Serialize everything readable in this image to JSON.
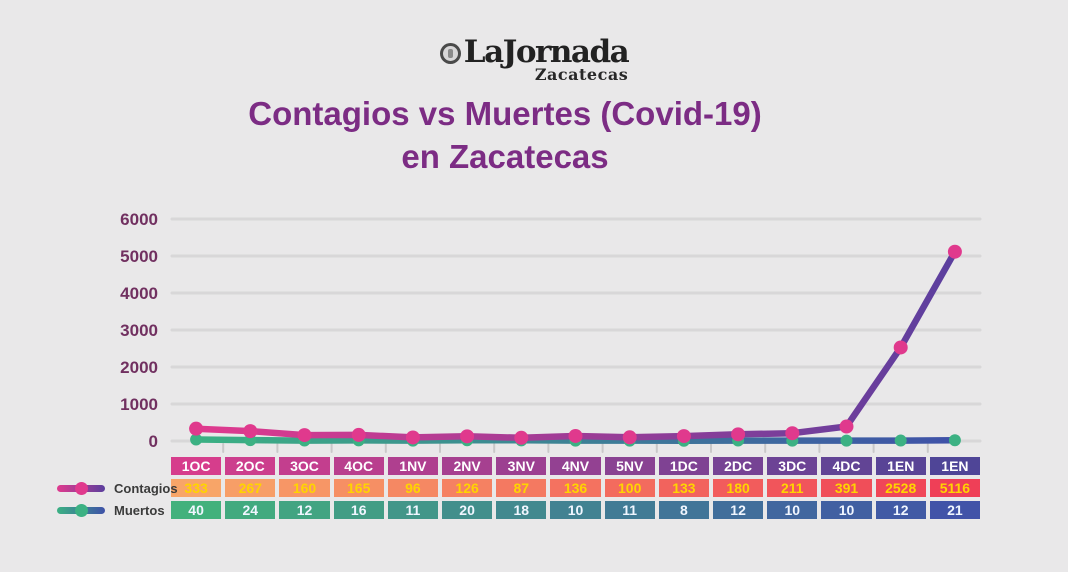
{
  "logo": {
    "brand": "LaJornada",
    "region": "Zacatecas",
    "icon": "eclipse-logo-icon"
  },
  "title": {
    "line1": "Contagios vs Muertes (Covid-19)",
    "line2": "en Zacatecas",
    "color": "#7c2c84"
  },
  "legend": {
    "items": [
      {
        "label": "Contagios"
      },
      {
        "label": "Muertos"
      }
    ],
    "text_color": "#3b3b3b"
  },
  "chart_data": {
    "type": "line",
    "title": "Contagios vs Muertes (Covid-19) en Zacatecas",
    "categories": [
      "1OC",
      "2OC",
      "3OC",
      "4OC",
      "1NV",
      "2NV",
      "3NV",
      "4NV",
      "5NV",
      "1DC",
      "2DC",
      "3DC",
      "4DC",
      "1EN",
      "1EN"
    ],
    "series": [
      {
        "name": "Contagios",
        "values": [
          333,
          267,
          160,
          165,
          96,
          126,
          87,
          136,
          100,
          133,
          180,
          211,
          391,
          2528,
          5116
        ],
        "line_gradient": [
          "#e03a8e",
          "#5b3f9e"
        ],
        "marker_color": "#e0398d"
      },
      {
        "name": "Muertos",
        "values": [
          40,
          24,
          12,
          16,
          11,
          20,
          18,
          10,
          11,
          8,
          12,
          10,
          10,
          12,
          21
        ],
        "line_gradient": [
          "#3bb183",
          "#3f51a8"
        ],
        "marker_color": "#3cb183"
      }
    ],
    "xlabel": "",
    "ylabel": "",
    "yticks": [
      0,
      1000,
      2000,
      3000,
      4000,
      5000,
      6000
    ],
    "ylim": [
      0,
      6000
    ],
    "grid": true,
    "legend_position": "bottom-left",
    "grid_color": "#d8d7d8",
    "tick_color": "#713060"
  },
  "table_colors": {
    "category_row": [
      "#d63d8c",
      "#4f4597"
    ],
    "contagios_row": [
      "#f8a568",
      "#ef3f57"
    ],
    "muertos_row": [
      "#42b17c",
      "#4153a8"
    ],
    "contagios_text": "#ffd400",
    "row_label_text": "#ffffff"
  }
}
